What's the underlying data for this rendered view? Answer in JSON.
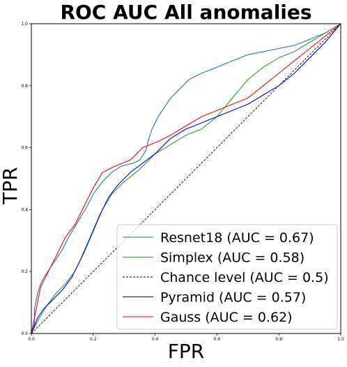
{
  "chart_data": {
    "type": "line",
    "title": "ROC AUC  All anomalies",
    "xlabel": "FPR",
    "ylabel": "TPR",
    "xlim": [
      0,
      1
    ],
    "ylim": [
      0,
      1
    ],
    "xticks": [
      "0.0",
      "0.2",
      "0.4",
      "0.6",
      "0.8",
      "1.0"
    ],
    "yticks": [
      "0.0",
      "0.2",
      "0.4",
      "0.6",
      "0.8",
      "1.0"
    ],
    "grid": false,
    "legend_position": "lower-right",
    "series": [
      {
        "name": "Resnet18 (AUC = 0.67)",
        "color": "#1f77b4",
        "style": "solid",
        "points": [
          [
            0,
            0
          ],
          [
            0.01,
            0.03
          ],
          [
            0.01,
            0.08
          ],
          [
            0.02,
            0.13
          ],
          [
            0.03,
            0.16
          ],
          [
            0.04,
            0.18
          ],
          [
            0.06,
            0.21
          ],
          [
            0.08,
            0.24
          ],
          [
            0.1,
            0.27
          ],
          [
            0.12,
            0.31
          ],
          [
            0.15,
            0.36
          ],
          [
            0.18,
            0.41
          ],
          [
            0.2,
            0.45
          ],
          [
            0.23,
            0.49
          ],
          [
            0.26,
            0.52
          ],
          [
            0.29,
            0.54
          ],
          [
            0.33,
            0.55
          ],
          [
            0.35,
            0.56
          ],
          [
            0.37,
            0.59
          ],
          [
            0.38,
            0.63
          ],
          [
            0.39,
            0.66
          ],
          [
            0.41,
            0.7
          ],
          [
            0.43,
            0.73
          ],
          [
            0.45,
            0.76
          ],
          [
            0.48,
            0.79
          ],
          [
            0.51,
            0.82
          ],
          [
            0.55,
            0.84
          ],
          [
            0.6,
            0.86
          ],
          [
            0.65,
            0.88
          ],
          [
            0.7,
            0.9
          ],
          [
            0.75,
            0.91
          ],
          [
            0.8,
            0.92
          ],
          [
            0.85,
            0.93
          ],
          [
            0.9,
            0.95
          ],
          [
            0.95,
            0.97
          ],
          [
            1,
            1
          ]
        ]
      },
      {
        "name": "Simplex (AUC = 0.58)",
        "color": "#2ca02c",
        "style": "solid",
        "points": [
          [
            0,
            0
          ],
          [
            0.02,
            0.04
          ],
          [
            0.05,
            0.09
          ],
          [
            0.08,
            0.13
          ],
          [
            0.11,
            0.16
          ],
          [
            0.14,
            0.2
          ],
          [
            0.17,
            0.26
          ],
          [
            0.2,
            0.33
          ],
          [
            0.23,
            0.4
          ],
          [
            0.26,
            0.45
          ],
          [
            0.3,
            0.49
          ],
          [
            0.35,
            0.53
          ],
          [
            0.4,
            0.58
          ],
          [
            0.45,
            0.61
          ],
          [
            0.5,
            0.64
          ],
          [
            0.55,
            0.66
          ],
          [
            0.6,
            0.7
          ],
          [
            0.65,
            0.76
          ],
          [
            0.7,
            0.82
          ],
          [
            0.75,
            0.86
          ],
          [
            0.8,
            0.89
          ],
          [
            0.85,
            0.91
          ],
          [
            0.9,
            0.94
          ],
          [
            0.95,
            0.97
          ],
          [
            1,
            1
          ]
        ]
      },
      {
        "name": "Chance level (AUC = 0.5)",
        "color": "#000000",
        "style": "dashed",
        "points": [
          [
            0,
            0
          ],
          [
            1,
            1
          ]
        ]
      },
      {
        "name": "Pyramid (AUC = 0.57)",
        "color": "#0000ff",
        "style": "solid",
        "points": [
          [
            0,
            0
          ],
          [
            0.02,
            0.05
          ],
          [
            0.04,
            0.08
          ],
          [
            0.07,
            0.11
          ],
          [
            0.1,
            0.14
          ],
          [
            0.13,
            0.18
          ],
          [
            0.16,
            0.24
          ],
          [
            0.19,
            0.31
          ],
          [
            0.22,
            0.38
          ],
          [
            0.25,
            0.44
          ],
          [
            0.28,
            0.48
          ],
          [
            0.32,
            0.52
          ],
          [
            0.36,
            0.55
          ],
          [
            0.4,
            0.58
          ],
          [
            0.45,
            0.63
          ],
          [
            0.5,
            0.66
          ],
          [
            0.55,
            0.68
          ],
          [
            0.6,
            0.7
          ],
          [
            0.65,
            0.72
          ],
          [
            0.7,
            0.74
          ],
          [
            0.75,
            0.77
          ],
          [
            0.8,
            0.8
          ],
          [
            0.85,
            0.84
          ],
          [
            0.9,
            0.89
          ],
          [
            0.95,
            0.94
          ],
          [
            1,
            1
          ]
        ]
      },
      {
        "name": "Gauss (AUC = 0.62)",
        "color": "#ff0000",
        "style": "solid",
        "points": [
          [
            0,
            0
          ],
          [
            0.01,
            0.05
          ],
          [
            0.02,
            0.1
          ],
          [
            0.03,
            0.15
          ],
          [
            0.05,
            0.19
          ],
          [
            0.07,
            0.23
          ],
          [
            0.09,
            0.27
          ],
          [
            0.11,
            0.31
          ],
          [
            0.14,
            0.35
          ],
          [
            0.17,
            0.41
          ],
          [
            0.2,
            0.47
          ],
          [
            0.23,
            0.52
          ],
          [
            0.27,
            0.54
          ],
          [
            0.32,
            0.56
          ],
          [
            0.36,
            0.6
          ],
          [
            0.41,
            0.62
          ],
          [
            0.45,
            0.64
          ],
          [
            0.5,
            0.67
          ],
          [
            0.55,
            0.7
          ],
          [
            0.6,
            0.72
          ],
          [
            0.65,
            0.74
          ],
          [
            0.7,
            0.76
          ],
          [
            0.75,
            0.8
          ],
          [
            0.8,
            0.84
          ],
          [
            0.85,
            0.88
          ],
          [
            0.9,
            0.92
          ],
          [
            0.95,
            0.96
          ],
          [
            1,
            1
          ]
        ]
      }
    ]
  }
}
